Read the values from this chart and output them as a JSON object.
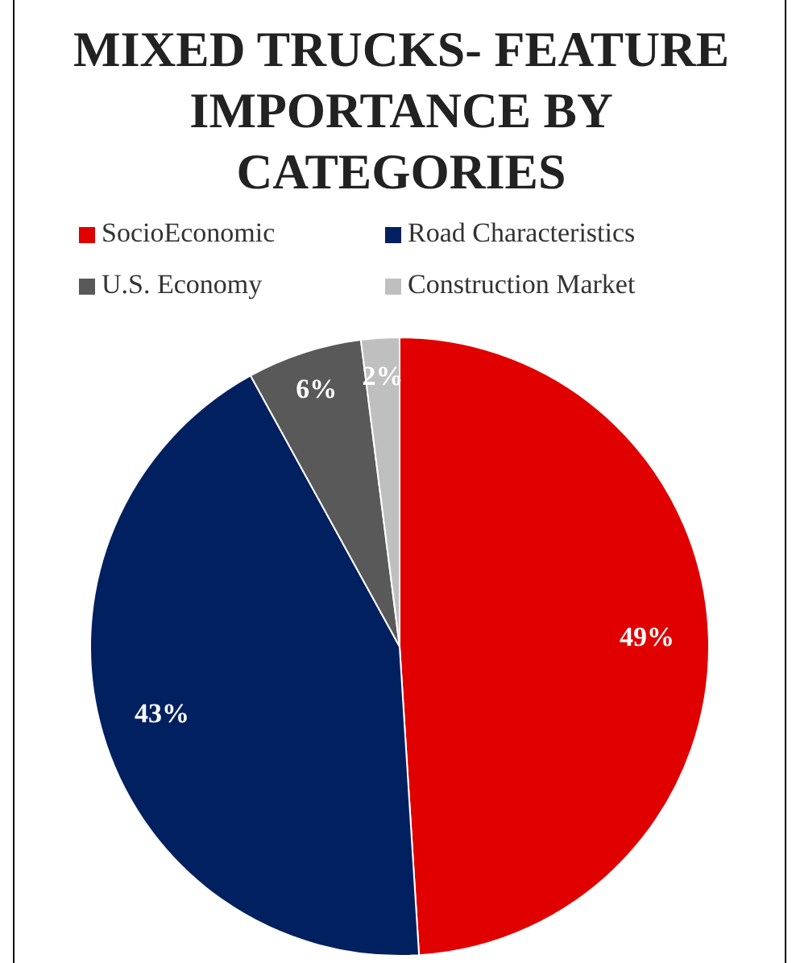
{
  "chart_data": {
    "type": "pie",
    "title": "MIXED TRUCKS- FEATURE IMPORTANCE BY CATEGORIES",
    "categories": [
      "SocioEconomic",
      "Road Characteristics",
      "U.S. Economy",
      "Construction Market"
    ],
    "values": [
      49,
      43,
      6,
      2
    ],
    "colors": [
      "#e00000",
      "#002060",
      "#595959",
      "#bfbfbf"
    ],
    "value_labels": [
      "49%",
      "43%",
      "6%",
      "2%"
    ],
    "legend": "top"
  }
}
